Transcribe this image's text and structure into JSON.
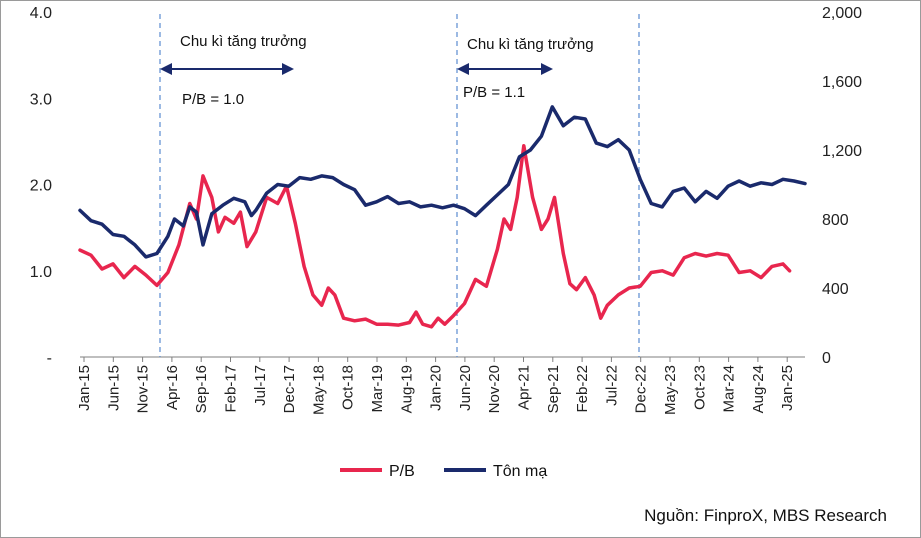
{
  "chart_data": {
    "type": "line",
    "left_axis": {
      "ticks": [
        "4.0",
        "3.0",
        "2.0",
        "1.0",
        "-"
      ],
      "range": [
        0,
        4
      ]
    },
    "right_axis": {
      "ticks": [
        "2,000",
        "1,600",
        "1,200",
        "800",
        "400",
        "0"
      ],
      "range": [
        0,
        2000
      ]
    },
    "x_labels": [
      "Jan-15",
      "Jun-15",
      "Nov-15",
      "Apr-16",
      "Sep-16",
      "Feb-17",
      "Jul-17",
      "Dec-17",
      "May-18",
      "Oct-18",
      "Mar-19",
      "Aug-19",
      "Jan-20",
      "Jun-20",
      "Nov-20",
      "Apr-21",
      "Sep-21",
      "Feb-22",
      "Jul-22",
      "Dec-22",
      "May-23",
      "Oct-23",
      "Mar-24",
      "Aug-24",
      "Jan-25"
    ],
    "series": [
      {
        "name": "P/B",
        "axis": "left",
        "color": "#e8264e",
        "points": [
          [
            0,
            1.24
          ],
          [
            0.5,
            1.18
          ],
          [
            1,
            1.02
          ],
          [
            1.5,
            1.08
          ],
          [
            2,
            0.92
          ],
          [
            2.5,
            1.05
          ],
          [
            3,
            0.95
          ],
          [
            3.5,
            0.83
          ],
          [
            4,
            0.98
          ],
          [
            4.5,
            1.3
          ],
          [
            5,
            1.78
          ],
          [
            5.3,
            1.6
          ],
          [
            5.6,
            2.1
          ],
          [
            6,
            1.85
          ],
          [
            6.3,
            1.45
          ],
          [
            6.6,
            1.62
          ],
          [
            7,
            1.55
          ],
          [
            7.3,
            1.68
          ],
          [
            7.6,
            1.28
          ],
          [
            8,
            1.45
          ],
          [
            8.5,
            1.85
          ],
          [
            9,
            1.78
          ],
          [
            9.4,
            1.98
          ],
          [
            9.8,
            1.55
          ],
          [
            10.2,
            1.05
          ],
          [
            10.6,
            0.72
          ],
          [
            11,
            0.6
          ],
          [
            11.3,
            0.8
          ],
          [
            11.6,
            0.72
          ],
          [
            12,
            0.45
          ],
          [
            12.5,
            0.42
          ],
          [
            13,
            0.44
          ],
          [
            13.5,
            0.38
          ],
          [
            14,
            0.38
          ],
          [
            14.5,
            0.37
          ],
          [
            15,
            0.4
          ],
          [
            15.3,
            0.52
          ],
          [
            15.6,
            0.38
          ],
          [
            16,
            0.35
          ],
          [
            16.3,
            0.45
          ],
          [
            16.6,
            0.38
          ],
          [
            17,
            0.48
          ],
          [
            17.5,
            0.62
          ],
          [
            18,
            0.9
          ],
          [
            18.5,
            0.82
          ],
          [
            19,
            1.25
          ],
          [
            19.3,
            1.6
          ],
          [
            19.6,
            1.48
          ],
          [
            19.9,
            1.85
          ],
          [
            20.2,
            2.45
          ],
          [
            20.6,
            1.85
          ],
          [
            21,
            1.48
          ],
          [
            21.3,
            1.6
          ],
          [
            21.6,
            1.85
          ],
          [
            22,
            1.2
          ],
          [
            22.3,
            0.85
          ],
          [
            22.6,
            0.78
          ],
          [
            23,
            0.92
          ],
          [
            23.4,
            0.72
          ],
          [
            23.7,
            0.45
          ],
          [
            24,
            0.6
          ],
          [
            24.5,
            0.72
          ],
          [
            25,
            0.8
          ],
          [
            25.5,
            0.82
          ],
          [
            26,
            0.98
          ],
          [
            26.5,
            1.0
          ],
          [
            27,
            0.95
          ],
          [
            27.5,
            1.15
          ],
          [
            28,
            1.2
          ],
          [
            28.5,
            1.17
          ],
          [
            29,
            1.2
          ],
          [
            29.5,
            1.18
          ],
          [
            30,
            0.98
          ],
          [
            30.5,
            1.0
          ],
          [
            31,
            0.92
          ],
          [
            31.5,
            1.05
          ],
          [
            32,
            1.08
          ],
          [
            32.3,
            1.0
          ]
        ]
      },
      {
        "name": "Tôn mạ",
        "axis": "right",
        "color": "#1a2a6c",
        "points": [
          [
            0,
            850
          ],
          [
            0.5,
            790
          ],
          [
            1,
            770
          ],
          [
            1.5,
            710
          ],
          [
            2,
            700
          ],
          [
            2.5,
            650
          ],
          [
            3,
            580
          ],
          [
            3.5,
            600
          ],
          [
            4,
            700
          ],
          [
            4.3,
            800
          ],
          [
            4.7,
            760
          ],
          [
            5,
            870
          ],
          [
            5.3,
            840
          ],
          [
            5.6,
            650
          ],
          [
            6,
            830
          ],
          [
            6.5,
            880
          ],
          [
            7,
            920
          ],
          [
            7.5,
            900
          ],
          [
            7.8,
            820
          ],
          [
            8,
            850
          ],
          [
            8.5,
            950
          ],
          [
            9,
            1000
          ],
          [
            9.5,
            990
          ],
          [
            10,
            1040
          ],
          [
            10.5,
            1030
          ],
          [
            11,
            1050
          ],
          [
            11.5,
            1040
          ],
          [
            12,
            1000
          ],
          [
            12.5,
            970
          ],
          [
            13,
            880
          ],
          [
            13.5,
            900
          ],
          [
            14,
            930
          ],
          [
            14.5,
            890
          ],
          [
            15,
            900
          ],
          [
            15.5,
            870
          ],
          [
            16,
            880
          ],
          [
            16.5,
            865
          ],
          [
            17,
            880
          ],
          [
            17.5,
            860
          ],
          [
            18,
            820
          ],
          [
            18.5,
            880
          ],
          [
            19,
            940
          ],
          [
            19.5,
            1000
          ],
          [
            20,
            1160
          ],
          [
            20.5,
            1200
          ],
          [
            21,
            1280
          ],
          [
            21.5,
            1450
          ],
          [
            22,
            1340
          ],
          [
            22.5,
            1390
          ],
          [
            23,
            1380
          ],
          [
            23.5,
            1240
          ],
          [
            24,
            1220
          ],
          [
            24.5,
            1260
          ],
          [
            25,
            1200
          ],
          [
            25.5,
            1030
          ],
          [
            26,
            890
          ],
          [
            26.5,
            870
          ],
          [
            27,
            960
          ],
          [
            27.5,
            980
          ],
          [
            28,
            900
          ],
          [
            28.5,
            960
          ],
          [
            29,
            920
          ],
          [
            29.5,
            990
          ],
          [
            30,
            1020
          ],
          [
            30.5,
            990
          ],
          [
            31,
            1010
          ],
          [
            31.5,
            1000
          ],
          [
            32,
            1030
          ],
          [
            32.5,
            1020
          ],
          [
            33,
            1005
          ]
        ]
      }
    ],
    "annotations": [
      {
        "label": "Chu kì tăng trưởng",
        "sublabel": "P/B = 1.0"
      },
      {
        "label": "Chu kì tăng trưởng",
        "sublabel": "P/B = 1.1"
      }
    ],
    "legend_position": "bottom"
  },
  "source": "Nguồn: FinproX, MBS Research"
}
